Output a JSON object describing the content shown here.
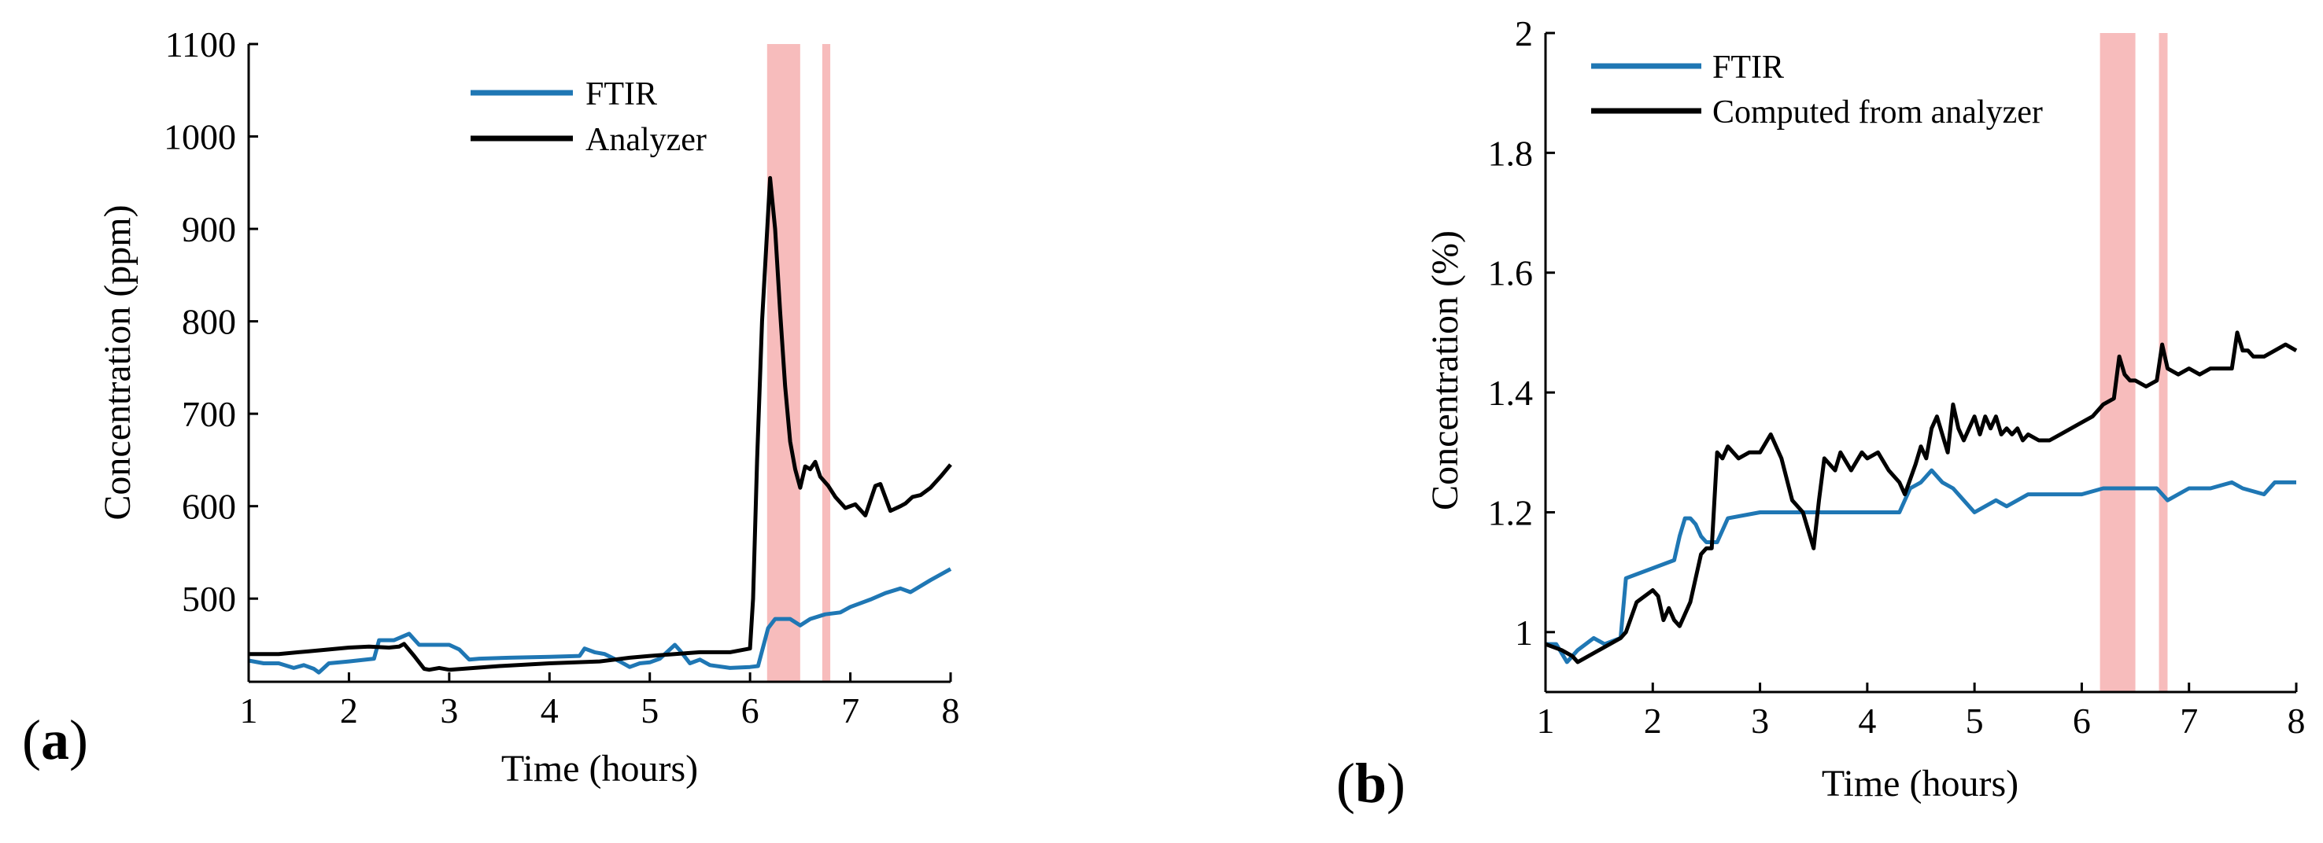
{
  "colors": {
    "ftir": "#1f77b4",
    "analyzer": "#000000",
    "highlight": "#f4a6a6",
    "axis": "#000000"
  },
  "chart_data": [
    {
      "type": "line",
      "panel_label": "a",
      "title": "",
      "xlabel": "Time (hours)",
      "ylabel": "Concentration (ppm)",
      "xlim": [
        1,
        8
      ],
      "ylim": [
        410,
        1100
      ],
      "xticks": [
        "1",
        "2",
        "3",
        "4",
        "5",
        "6",
        "7",
        "8"
      ],
      "yticks": [
        "500",
        "600",
        "700",
        "800",
        "900",
        "1000",
        "1100"
      ],
      "xtick_values": [
        1,
        2,
        3,
        4,
        5,
        6,
        7,
        8
      ],
      "ytick_values": [
        500,
        600,
        700,
        800,
        900,
        1000,
        1100
      ],
      "legend": [
        "FTIR",
        "Analyzer"
      ],
      "legend_position": "top-center",
      "highlight_regions": [
        [
          6.17,
          6.5
        ],
        [
          6.72,
          6.8
        ]
      ],
      "series": [
        {
          "name": "FTIR",
          "color": "#1f77b4",
          "x": [
            1.0,
            1.15,
            1.3,
            1.45,
            1.55,
            1.65,
            1.7,
            1.8,
            2.0,
            2.25,
            2.3,
            2.45,
            2.6,
            2.7,
            2.8,
            3.0,
            3.1,
            3.2,
            3.3,
            3.6,
            4.0,
            4.3,
            4.35,
            4.45,
            4.55,
            4.7,
            4.8,
            4.9,
            5.0,
            5.1,
            5.25,
            5.3,
            5.4,
            5.5,
            5.6,
            5.8,
            6.0,
            6.08,
            6.18,
            6.25,
            6.4,
            6.5,
            6.6,
            6.75,
            6.9,
            7.0,
            7.2,
            7.35,
            7.5,
            7.6,
            7.8,
            8.0
          ],
          "y": [
            433,
            430,
            430,
            425,
            428,
            424,
            420,
            430,
            432,
            435,
            455,
            455,
            462,
            450,
            450,
            450,
            445,
            434,
            435,
            436,
            437,
            438,
            446,
            442,
            440,
            432,
            426,
            430,
            431,
            435,
            450,
            444,
            430,
            434,
            428,
            425,
            426,
            427,
            468,
            478,
            478,
            471,
            478,
            483,
            485,
            491,
            499,
            506,
            511,
            507,
            520,
            532
          ]
        },
        {
          "name": "Analyzer",
          "color": "#000000",
          "x": [
            1.0,
            1.3,
            1.6,
            2.0,
            2.2,
            2.4,
            2.5,
            2.55,
            2.65,
            2.75,
            2.8,
            2.9,
            3.0,
            3.5,
            4.0,
            4.5,
            4.8,
            5.0,
            5.5,
            5.8,
            6.0,
            6.03,
            6.07,
            6.12,
            6.2,
            6.25,
            6.3,
            6.35,
            6.4,
            6.45,
            6.5,
            6.55,
            6.6,
            6.65,
            6.7,
            6.78,
            6.85,
            6.95,
            7.05,
            7.15,
            7.25,
            7.3,
            7.4,
            7.5,
            7.55,
            7.62,
            7.7,
            7.8,
            7.9,
            8.0
          ],
          "y": [
            440,
            440,
            443,
            447,
            448,
            447,
            448,
            451,
            438,
            424,
            423,
            425,
            423,
            427,
            430,
            432,
            436,
            438,
            442,
            442,
            446,
            500,
            650,
            800,
            955,
            900,
            810,
            730,
            670,
            640,
            620,
            643,
            640,
            648,
            632,
            622,
            610,
            598,
            602,
            590,
            622,
            624,
            595,
            600,
            603,
            610,
            612,
            620,
            632,
            645
          ]
        }
      ]
    },
    {
      "type": "line",
      "panel_label": "b",
      "title": "",
      "xlabel": "Time (hours)",
      "ylabel": "Concentration (%)",
      "xlim": [
        1,
        8
      ],
      "ylim": [
        0.9,
        2.0
      ],
      "xticks": [
        "1",
        "2",
        "3",
        "4",
        "5",
        "6",
        "7",
        "8"
      ],
      "yticks": [
        "1",
        "1.2",
        "1.4",
        "1.6",
        "1.8",
        "2"
      ],
      "xtick_values": [
        1,
        2,
        3,
        4,
        5,
        6,
        7,
        8
      ],
      "ytick_values": [
        1.0,
        1.2,
        1.4,
        1.6,
        1.8,
        2.0
      ],
      "legend": [
        "FTIR",
        "Computed from analyzer"
      ],
      "legend_position": "top-left",
      "highlight_regions": [
        [
          6.17,
          6.5
        ],
        [
          6.72,
          6.8
        ]
      ],
      "series": [
        {
          "name": "FTIR",
          "color": "#1f77b4",
          "x": [
            1.0,
            1.1,
            1.2,
            1.3,
            1.45,
            1.55,
            1.7,
            1.75,
            2.2,
            2.25,
            2.3,
            2.35,
            2.4,
            2.45,
            2.5,
            2.6,
            2.7,
            3.0,
            3.2,
            4.3,
            4.4,
            4.5,
            4.6,
            4.7,
            4.8,
            5.0,
            5.1,
            5.2,
            5.3,
            5.4,
            5.5,
            5.7,
            6.0,
            6.2,
            6.4,
            6.6,
            6.7,
            6.8,
            7.0,
            7.2,
            7.4,
            7.5,
            7.7,
            7.8,
            8.0
          ],
          "y": [
            0.98,
            0.98,
            0.95,
            0.97,
            0.99,
            0.98,
            0.99,
            1.09,
            1.12,
            1.16,
            1.19,
            1.19,
            1.18,
            1.16,
            1.15,
            1.15,
            1.19,
            1.2,
            1.2,
            1.2,
            1.24,
            1.25,
            1.27,
            1.25,
            1.24,
            1.2,
            1.21,
            1.22,
            1.21,
            1.22,
            1.23,
            1.23,
            1.23,
            1.24,
            1.24,
            1.24,
            1.24,
            1.22,
            1.24,
            1.24,
            1.25,
            1.24,
            1.23,
            1.25,
            1.25
          ]
        },
        {
          "name": "Computed from analyzer",
          "color": "#000000",
          "x": [
            1.0,
            1.15,
            1.25,
            1.3,
            1.4,
            1.5,
            1.6,
            1.7,
            1.75,
            1.85,
            2.0,
            2.05,
            2.1,
            2.15,
            2.2,
            2.25,
            2.35,
            2.45,
            2.5,
            2.55,
            2.6,
            2.65,
            2.7,
            2.8,
            2.9,
            3.0,
            3.1,
            3.2,
            3.3,
            3.4,
            3.5,
            3.55,
            3.6,
            3.7,
            3.75,
            3.85,
            3.95,
            4.0,
            4.1,
            4.2,
            4.3,
            4.35,
            4.45,
            4.5,
            4.55,
            4.6,
            4.65,
            4.75,
            4.8,
            4.85,
            4.9,
            4.95,
            5.0,
            5.05,
            5.1,
            5.15,
            5.2,
            5.25,
            5.3,
            5.35,
            5.4,
            5.45,
            5.5,
            5.6,
            5.7,
            5.8,
            5.9,
            6.0,
            6.1,
            6.2,
            6.3,
            6.35,
            6.4,
            6.45,
            6.5,
            6.6,
            6.7,
            6.75,
            6.8,
            6.9,
            7.0,
            7.1,
            7.2,
            7.3,
            7.4,
            7.45,
            7.5,
            7.55,
            7.6,
            7.7,
            7.8,
            7.9,
            8.0
          ],
          "y": [
            0.98,
            0.97,
            0.96,
            0.95,
            0.96,
            0.97,
            0.98,
            0.99,
            1.0,
            1.05,
            1.07,
            1.06,
            1.02,
            1.04,
            1.02,
            1.01,
            1.05,
            1.13,
            1.14,
            1.14,
            1.3,
            1.29,
            1.31,
            1.29,
            1.3,
            1.3,
            1.33,
            1.29,
            1.22,
            1.2,
            1.14,
            1.22,
            1.29,
            1.27,
            1.3,
            1.27,
            1.3,
            1.29,
            1.3,
            1.27,
            1.25,
            1.23,
            1.28,
            1.31,
            1.29,
            1.34,
            1.36,
            1.3,
            1.38,
            1.34,
            1.32,
            1.34,
            1.36,
            1.33,
            1.36,
            1.34,
            1.36,
            1.33,
            1.34,
            1.33,
            1.34,
            1.32,
            1.33,
            1.32,
            1.32,
            1.33,
            1.34,
            1.35,
            1.36,
            1.38,
            1.39,
            1.46,
            1.43,
            1.42,
            1.42,
            1.41,
            1.42,
            1.48,
            1.44,
            1.43,
            1.44,
            1.43,
            1.44,
            1.44,
            1.44,
            1.5,
            1.47,
            1.47,
            1.46,
            1.46,
            1.47,
            1.48,
            1.47
          ]
        }
      ]
    }
  ]
}
